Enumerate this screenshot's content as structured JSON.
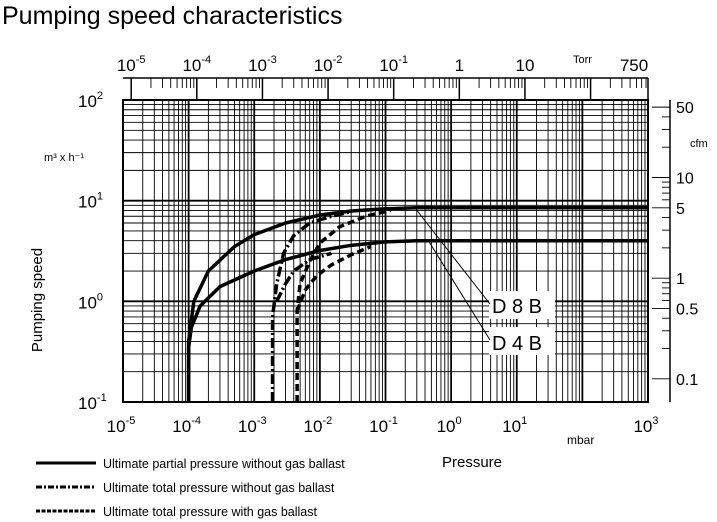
{
  "chart_data": {
    "type": "line",
    "title": "Pumping speed characteristics",
    "xlabel": "Pressure",
    "xunit": "mbar",
    "ylabel": "Pumping speed",
    "yunit": "m³ x h⁻¹",
    "xscale": "log",
    "yscale": "log",
    "xlim": [
      1e-05,
      1000
    ],
    "ylim": [
      0.1,
      100
    ],
    "x_ticks": [
      {
        "b": "10",
        "e": "-5",
        "v": 1e-05
      },
      {
        "b": "10",
        "e": "-4",
        "v": 0.0001
      },
      {
        "b": "10",
        "e": "-3",
        "v": 0.001
      },
      {
        "b": "10",
        "e": "-2",
        "v": 0.01
      },
      {
        "b": "10",
        "e": "-1",
        "v": 0.1
      },
      {
        "b": "10",
        "e": "0",
        "v": 1
      },
      {
        "b": "10",
        "e": "1",
        "v": 10
      },
      {
        "b": "10",
        "e": "3",
        "v": 1000
      }
    ],
    "y_ticks": [
      {
        "b": "10",
        "e": "2",
        "v": 100
      },
      {
        "b": "10",
        "e": "1",
        "v": 10
      },
      {
        "b": "10",
        "e": "0",
        "v": 1
      },
      {
        "b": "10",
        "e": "-1",
        "v": 0.1
      }
    ],
    "top_axis": {
      "unit": "Torr",
      "ticks": [
        {
          "b": "10",
          "e": "-5",
          "v": 1e-05
        },
        {
          "b": "10",
          "e": "-4",
          "v": 0.0001
        },
        {
          "b": "10",
          "e": "-3",
          "v": 0.001
        },
        {
          "b": "10",
          "e": "-2",
          "v": 0.01
        },
        {
          "b": "10",
          "e": "-1",
          "v": 0.1
        },
        {
          "b": "1",
          "e": "",
          "v": 1
        },
        {
          "b": "10",
          "e": "",
          "v": 10
        },
        {
          "b": "750",
          "e": "",
          "v": 750
        }
      ]
    },
    "right_axis": {
      "unit": "cfm",
      "ticks": [
        {
          "label": "50",
          "v": 50
        },
        {
          "label": "10",
          "v": 10
        },
        {
          "label": "5",
          "v": 5
        },
        {
          "label": "1",
          "v": 1
        },
        {
          "label": "0.5",
          "v": 0.5
        },
        {
          "label": "0.1",
          "v": 0.1
        }
      ]
    },
    "series": [
      {
        "name": "D 8 B - Ultimate partial pressure without gas ballast",
        "style": "solid",
        "x": [
          0.0001,
          0.0001,
          0.00012,
          0.0002,
          0.0005,
          0.001,
          0.003,
          0.01,
          0.03,
          0.1,
          0.3,
          1000
        ],
        "y": [
          0.1,
          0.4,
          1,
          2,
          3.5,
          4.6,
          6,
          7.2,
          7.9,
          8.3,
          8.5,
          8.5
        ]
      },
      {
        "name": "D 4 B - Ultimate partial pressure without gas ballast",
        "style": "solid",
        "x": [
          0.0001,
          0.0001,
          0.00011,
          0.00015,
          0.0003,
          0.001,
          0.003,
          0.01,
          0.03,
          0.1,
          0.3,
          1000
        ],
        "y": [
          0.1,
          0.35,
          0.55,
          0.9,
          1.4,
          2,
          2.6,
          3.2,
          3.6,
          3.9,
          4,
          4
        ]
      },
      {
        "name": "D 8 B - Ultimate total pressure without gas ballast",
        "style": "dashdot",
        "x": [
          0.0019,
          0.0019,
          0.0022,
          0.0028,
          0.004,
          0.007,
          0.015,
          0.03
        ],
        "y": [
          0.1,
          0.7,
          1.5,
          3,
          4.5,
          6,
          7,
          7.8
        ]
      },
      {
        "name": "D 4 B - Ultimate total pressure without gas ballast",
        "style": "dashdot",
        "x": [
          0.0022,
          0.003,
          0.004,
          0.007,
          0.015
        ],
        "y": [
          1,
          1.5,
          2,
          2.6,
          3
        ]
      },
      {
        "name": "D 8 B - Ultimate total pressure with gas ballast",
        "style": "dashed",
        "x": [
          0.0045,
          0.0045,
          0.005,
          0.007,
          0.01,
          0.02,
          0.05,
          0.12
        ],
        "y": [
          0.1,
          0.8,
          1.5,
          2.5,
          3.8,
          5.5,
          7,
          8
        ]
      },
      {
        "name": "D 4 B - Ultimate total pressure with gas ballast",
        "style": "dashed",
        "x": [
          0.0045,
          0.006,
          0.009,
          0.015,
          0.03,
          0.06
        ],
        "y": [
          0.8,
          1.3,
          1.8,
          2.3,
          2.9,
          3.5
        ]
      }
    ],
    "annotations": [
      "D 8 B",
      "D 4 B"
    ],
    "legend": [
      {
        "label": "Ultimate partial pressure without gas ballast",
        "style": "solid"
      },
      {
        "label": "Ultimate total pressure without gas ballast",
        "style": "dashdot"
      },
      {
        "label": "Ultimate total pressure with gas ballast",
        "style": "dashed"
      }
    ],
    "legend_position": "bottom-left",
    "grid": true
  }
}
